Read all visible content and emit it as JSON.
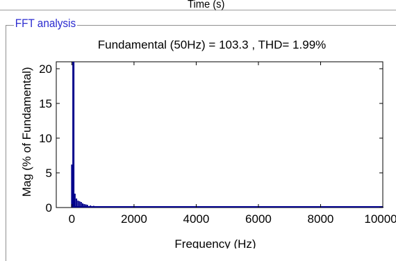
{
  "header": {
    "label": "Time (s)"
  },
  "panel": {
    "title": "FFT analysis"
  },
  "chart_data": {
    "type": "bar",
    "title": "Fundamental (50Hz) = 103.3 , THD= 1.99%",
    "xlabel": "Frequency (Hz)",
    "ylabel": "Mag (% of Fundamental)",
    "xlim": [
      -500,
      10000
    ],
    "ylim": [
      0,
      21
    ],
    "x_ticks": [
      {
        "value": 0,
        "label": "0"
      },
      {
        "value": 2000,
        "label": "2000"
      },
      {
        "value": 4000,
        "label": "4000"
      },
      {
        "value": 6000,
        "label": "6000"
      },
      {
        "value": 8000,
        "label": "8000"
      },
      {
        "value": 10000,
        "label": "10000"
      }
    ],
    "y_ticks": [
      {
        "value": 0,
        "label": "0"
      },
      {
        "value": 5,
        "label": "5"
      },
      {
        "value": 10,
        "label": "10"
      },
      {
        "value": 15,
        "label": "15"
      },
      {
        "value": 20,
        "label": "20"
      }
    ],
    "bar_color": "#00008b",
    "x": [
      0,
      50,
      100,
      150,
      200,
      250,
      300,
      350,
      400,
      450,
      500,
      600,
      700,
      800,
      900,
      1000,
      1200,
      1500,
      2000,
      3000,
      4000,
      5000,
      6000,
      7000,
      8000,
      9000,
      10000
    ],
    "values": [
      6.2,
      21,
      2.0,
      1.3,
      1.0,
      0.9,
      0.8,
      0.6,
      0.5,
      0.45,
      0.4,
      0.3,
      0.25,
      0.2,
      0.2,
      0.15,
      0.15,
      0.12,
      0.1,
      0.1,
      0.1,
      0.1,
      0.1,
      0.1,
      0.1,
      0.1,
      0.1
    ]
  }
}
